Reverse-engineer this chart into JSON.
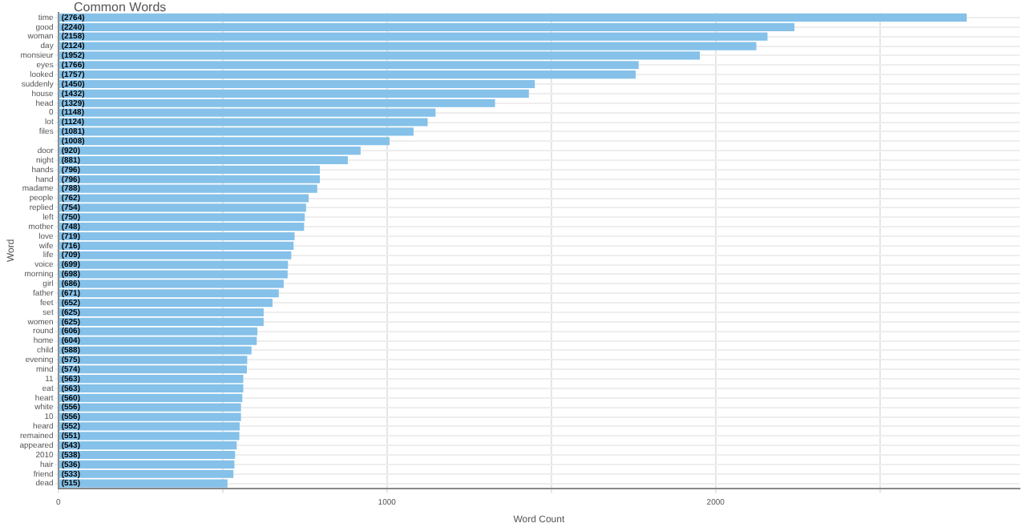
{
  "chart_data": {
    "type": "bar",
    "orientation": "horizontal",
    "title": "Common Words",
    "xlabel": "Word Count",
    "ylabel": "Word",
    "categories": [
      "time",
      "good",
      "woman",
      "day",
      "monsieur",
      "eyes",
      "looked",
      "suddenly",
      "house",
      "head",
      "0",
      "lot",
      "files",
      null,
      "door",
      "night",
      "hands",
      "hand",
      "madame",
      "people",
      "replied",
      "left",
      "mother",
      "love",
      "wife",
      "life",
      "voice",
      "morning",
      "girl",
      "father",
      "feet",
      "set",
      "women",
      "round",
      "home",
      "child",
      "evening",
      "mind",
      "11",
      "eat",
      "heart",
      "white",
      "10",
      "heard",
      "remained",
      "appeared",
      "2010",
      "hair",
      "friend",
      "dead"
    ],
    "values": [
      2764,
      2240,
      2158,
      2124,
      1952,
      1766,
      1757,
      1450,
      1432,
      1329,
      1148,
      1124,
      1081,
      1008,
      920,
      881,
      796,
      796,
      788,
      762,
      754,
      750,
      748,
      719,
      716,
      709,
      699,
      698,
      686,
      671,
      652,
      625,
      625,
      606,
      604,
      588,
      575,
      574,
      563,
      563,
      560,
      556,
      556,
      552,
      551,
      543,
      538,
      536,
      533,
      515
    ],
    "value_labels": [
      "(2764)",
      "(2240)",
      "(2158)",
      "(2124)",
      "(1952)",
      "(1766)",
      "(1757)",
      "(1450)",
      "(1432)",
      "(1329)",
      "(1148)",
      "(1124)",
      "(1081)",
      "(1008)",
      "(920)",
      "(881)",
      "(796)",
      "(796)",
      "(788)",
      "(762)",
      "(754)",
      "(750)",
      "(748)",
      "(719)",
      "(716)",
      "(709)",
      "(699)",
      "(698)",
      "(686)",
      "(671)",
      "(652)",
      "(625)",
      "(625)",
      "(606)",
      "(604)",
      "(588)",
      "(575)",
      "(574)",
      "(563)",
      "(563)",
      "(560)",
      "(556)",
      "(556)",
      "(552)",
      "(551)",
      "(543)",
      "(538)",
      "(536)",
      "(533)",
      "(515)"
    ],
    "color": "#85c1e9",
    "xlim": [
      0,
      2925
    ],
    "xticks": [
      0,
      {
        "value": 500,
        "label": null
      },
      1000,
      {
        "value": 1500,
        "label": null
      },
      2000,
      {
        "value": 2500,
        "label": null
      }
    ],
    "grid": true,
    "legend": false
  }
}
